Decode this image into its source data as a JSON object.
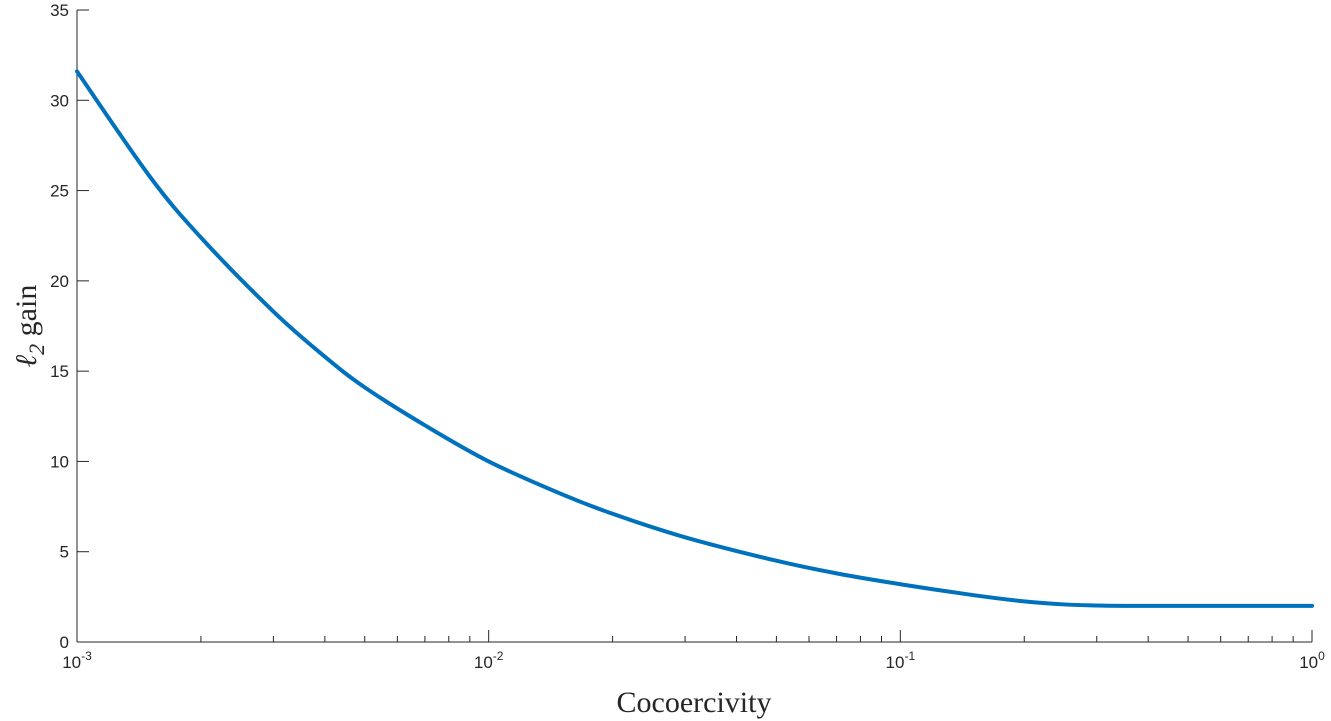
{
  "chart_data": {
    "type": "line",
    "title": "",
    "xlabel": "Cocoercivity",
    "ylabel_main": "ℓ",
    "ylabel_sub": "2",
    "ylabel_tail": " gain",
    "xscale": "log",
    "xlim": [
      0.001,
      1
    ],
    "ylim": [
      0,
      35
    ],
    "grid": false,
    "x_ticks": [
      {
        "value": 0.001,
        "base": "10",
        "exp": "-3"
      },
      {
        "value": 0.01,
        "base": "10",
        "exp": "-2"
      },
      {
        "value": 0.1,
        "base": "10",
        "exp": "-1"
      },
      {
        "value": 1,
        "base": "10",
        "exp": "0"
      }
    ],
    "y_ticks": [
      {
        "value": 0,
        "label": "0"
      },
      {
        "value": 5,
        "label": "5"
      },
      {
        "value": 10,
        "label": "10"
      },
      {
        "value": 15,
        "label": "15"
      },
      {
        "value": 20,
        "label": "20"
      },
      {
        "value": 25,
        "label": "25"
      },
      {
        "value": 30,
        "label": "30"
      },
      {
        "value": 35,
        "label": "35"
      }
    ],
    "series": [
      {
        "color": "#0072BD",
        "x": [
          0.001,
          0.0015,
          0.002,
          0.003,
          0.004,
          0.005,
          0.007,
          0.01,
          0.015,
          0.02,
          0.03,
          0.05,
          0.07,
          0.1,
          0.15,
          0.2,
          0.25,
          0.3,
          0.35,
          0.4,
          0.5,
          0.6,
          0.7,
          0.8,
          0.9,
          1
        ],
        "y": [
          31.6,
          25.8,
          22.4,
          18.3,
          15.8,
          14.1,
          12.0,
          10.0,
          8.2,
          7.1,
          5.8,
          4.5,
          3.8,
          3.2,
          2.6,
          2.25,
          2.08,
          2.02,
          2.0,
          2.0,
          2.0,
          2.0,
          2.0,
          2.0,
          2.0,
          2.0
        ]
      }
    ]
  }
}
